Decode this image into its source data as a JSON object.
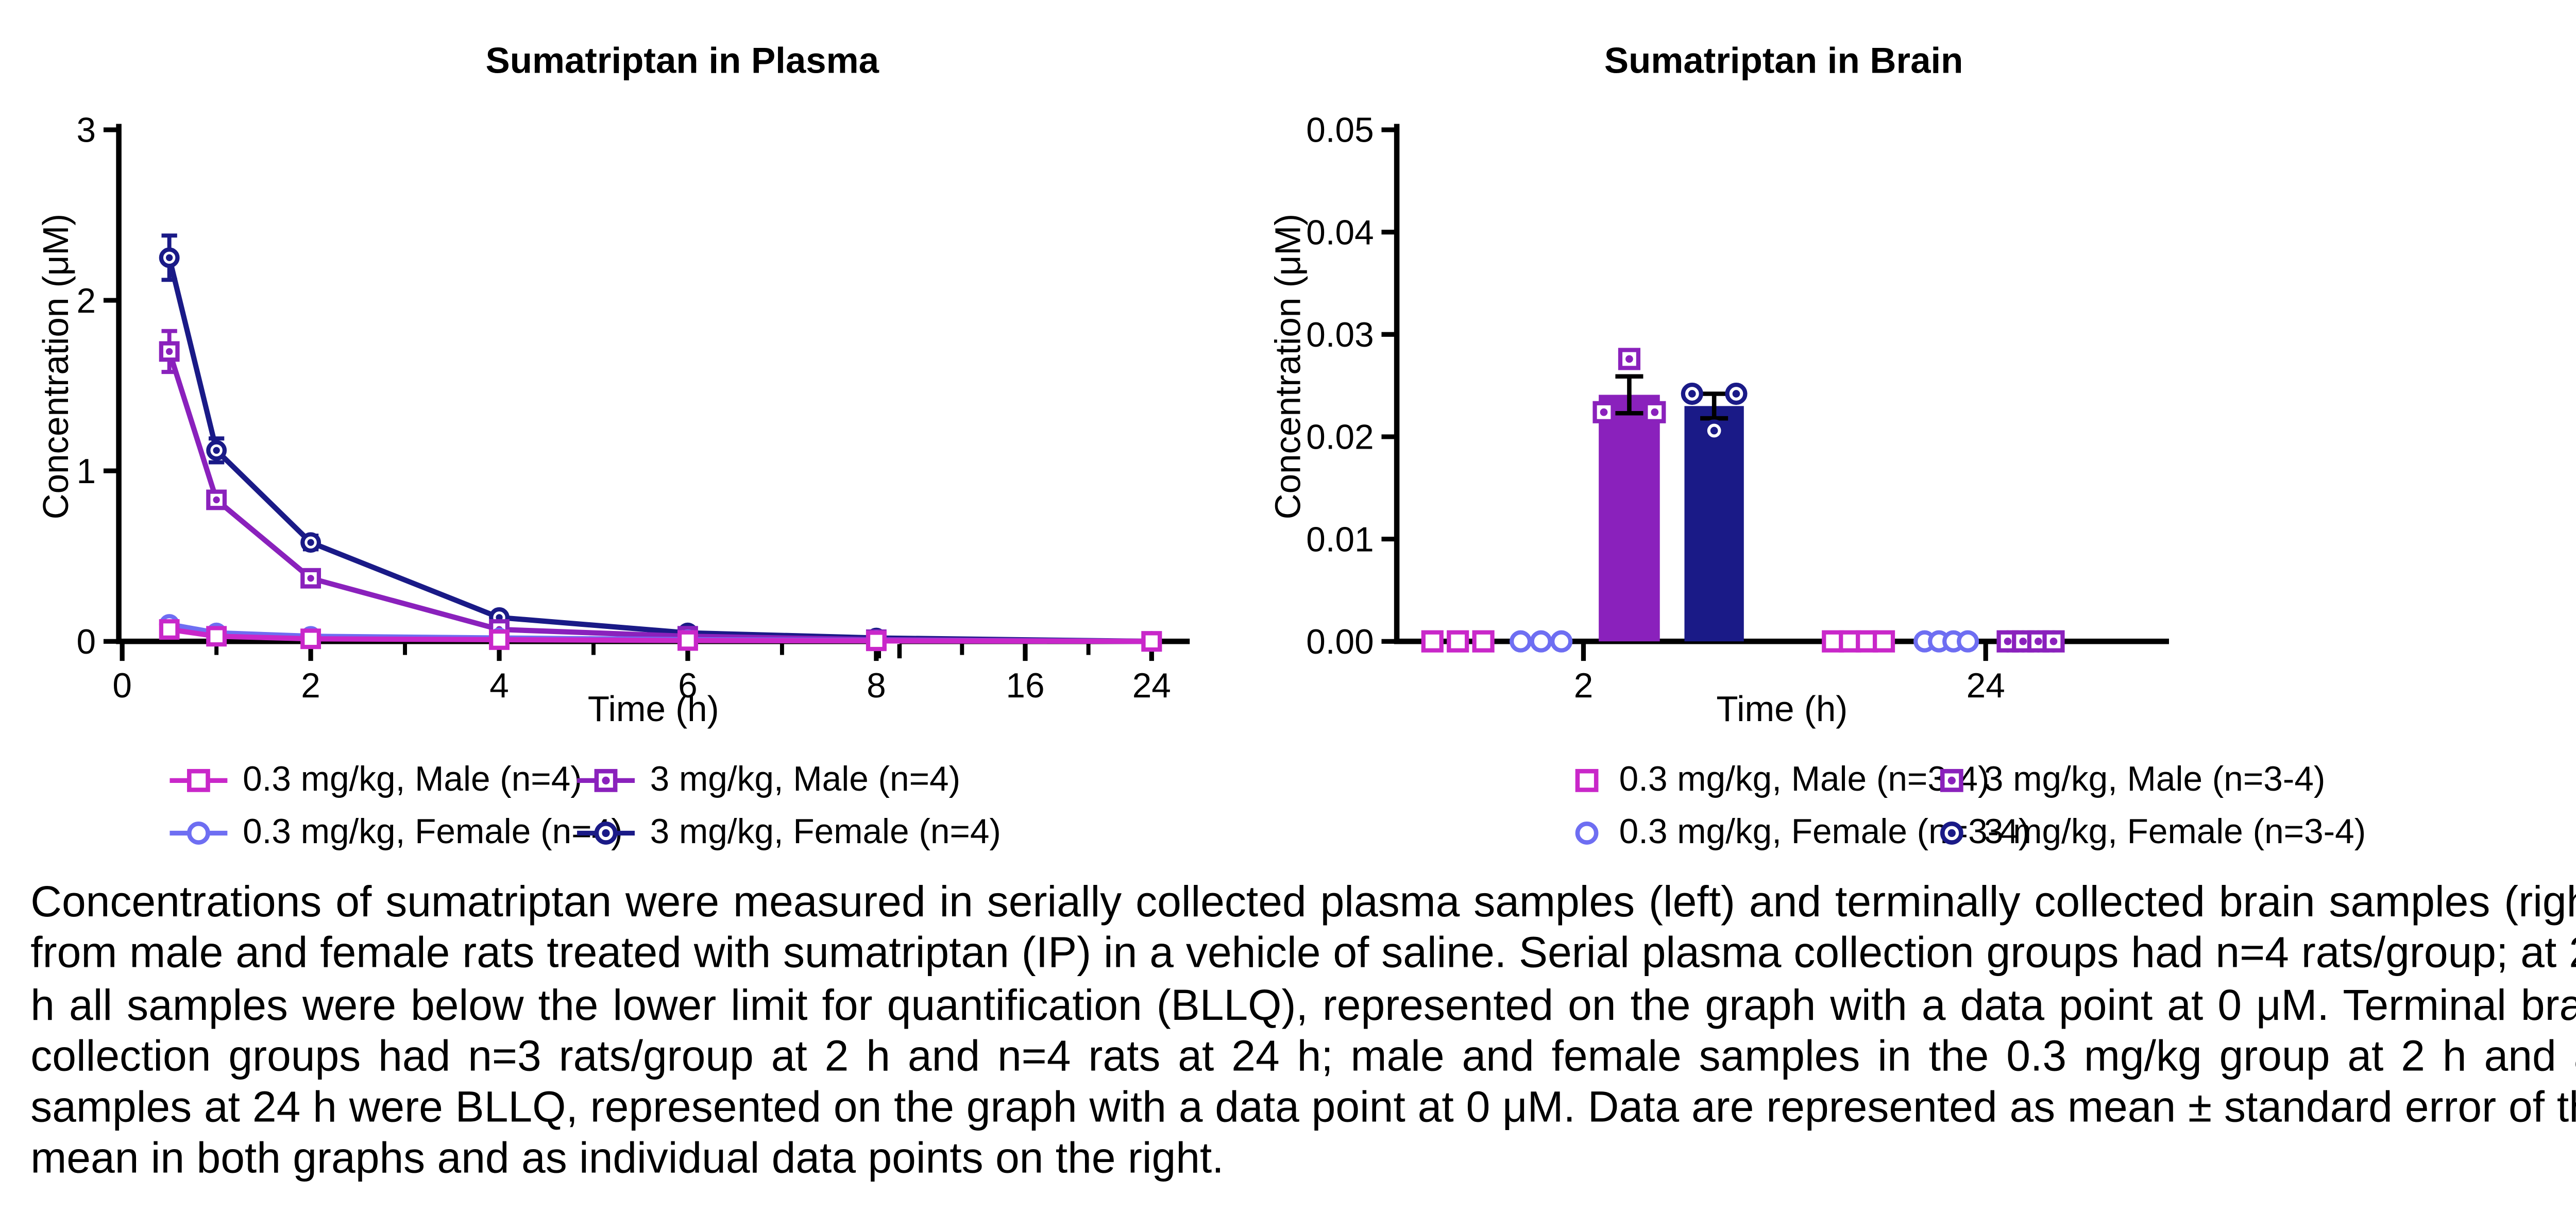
{
  "figure": {
    "caption": "Concentrations of sumatriptan were measured in serially collected plasma samples (left) and terminally collected brain samples (right) from male and female rats treated with sumatriptan (IP) in a vehicle of saline. Serial plasma collection groups had n=4 rats/group; at 24 h all samples were below the lower limit for quantification (BLLQ), represented on the graph with a data point at 0 μM. Terminal brain collection groups had n=3 rats/group at 2 h and n=4 rats at 24 h; male and female samples in the 0.3 mg/kg group at 2 h and all samples at 24 h were BLLQ, represented on the graph with a data point at 0 μM. Data are represented as mean ± standard error of the mean in both graphs and as individual data points on the right."
  },
  "colors": {
    "magenta": "#C927C9",
    "blue": "#6E6EF2",
    "purple": "#8A21BC",
    "navy": "#1A1A87",
    "axis": "#000000",
    "error_bar_right": "#000000",
    "background": "#FFFFFF"
  },
  "chart_data": [
    {
      "id": "plasma",
      "type": "line",
      "title": "Sumatriptan in Plasma",
      "xlabel": "Time (h)",
      "ylabel": "Concentration (μM)",
      "x": [
        0.5,
        1,
        2,
        4,
        6,
        8,
        24
      ],
      "xticks": [
        "0",
        "2",
        "4",
        "6",
        "8",
        "16",
        "24"
      ],
      "minor_xticks": [
        1,
        3,
        5,
        7,
        12,
        20
      ],
      "axis_break_between": [
        8,
        16
      ],
      "yticks": [
        "0",
        "1",
        "2",
        "3"
      ],
      "ylim": [
        0,
        3
      ],
      "grid": false,
      "legend_position": "bottom",
      "series": [
        {
          "name": "3 mg/kg, Female (n=4)",
          "color": "#1A1A87",
          "marker": "circle-dot",
          "values": [
            2.25,
            1.12,
            0.58,
            0.14,
            0.05,
            0.02,
            0
          ],
          "sem": [
            0.13,
            0.07,
            0.04,
            0.02,
            0.01,
            0.005,
            0
          ]
        },
        {
          "name": "3 mg/kg, Male (n=4)",
          "color": "#8A21BC",
          "marker": "square-dot",
          "values": [
            1.7,
            0.83,
            0.37,
            0.07,
            0.03,
            0.01,
            0
          ],
          "sem": [
            0.12,
            0.04,
            0.03,
            0.015,
            0.008,
            0.004,
            0
          ]
        },
        {
          "name": "0.3 mg/kg, Female (n=4)",
          "color": "#6E6EF2",
          "marker": "circle-open",
          "values": [
            0.1,
            0.05,
            0.03,
            0.02,
            0.01,
            0.005,
            0
          ],
          "sem": [
            0.015,
            0.008,
            0.005,
            0.004,
            0.003,
            0.002,
            0
          ]
        },
        {
          "name": "0.3 mg/kg, Male (n=4)",
          "color": "#C927C9",
          "marker": "square-open",
          "values": [
            0.07,
            0.03,
            0.015,
            0.01,
            0.005,
            0.003,
            0
          ],
          "sem": [
            0.01,
            0.005,
            0.003,
            0.003,
            0.002,
            0.001,
            0
          ]
        }
      ]
    },
    {
      "id": "brain",
      "type": "bar-scatter",
      "title": "Sumatriptan in Brain",
      "xlabel": "Time (h)",
      "ylabel": "Concentration (μM)",
      "timepoint_ticks": [
        "2",
        "24"
      ],
      "yticks": [
        "0.00",
        "0.01",
        "0.02",
        "0.03",
        "0.04",
        "0.05"
      ],
      "ylim": [
        0,
        0.05
      ],
      "grid": false,
      "legend_position": "bottom",
      "groups": [
        {
          "name": "0.3 mg/kg, Male (n=3-4)",
          "color": "#C927C9",
          "marker": "square-open",
          "bar": null,
          "points": {
            "t2": [
              0,
              0,
              0
            ],
            "t24": [
              0,
              0,
              0,
              0
            ]
          }
        },
        {
          "name": "0.3 mg/kg, Female (n=3-4)",
          "color": "#6E6EF2",
          "marker": "circle-open",
          "bar": null,
          "points": {
            "t2": [
              0,
              0,
              0
            ],
            "t24": [
              0,
              0,
              0,
              0
            ]
          }
        },
        {
          "name": "3 mg/kg, Male (n=3-4)",
          "color": "#8A21BC",
          "marker": "square-dot",
          "bar": {
            "t2": {
              "mean": 0.0241,
              "sem": 0.0018
            }
          },
          "points": {
            "t2": [
              0.0276,
              0.0224,
              0.0224
            ],
            "t24": [
              0,
              0,
              0,
              0
            ]
          }
        },
        {
          "name": "3 mg/kg, Female (n=3-4)",
          "color": "#1A1A87",
          "marker": "circle-dot",
          "bar": {
            "t2": {
              "mean": 0.023,
              "sem": 0.0012
            }
          },
          "points": {
            "t2": [
              0.0242,
              0.0242,
              0.0206
            ],
            "t24": [
              0,
              0,
              0,
              0
            ]
          }
        }
      ]
    }
  ]
}
